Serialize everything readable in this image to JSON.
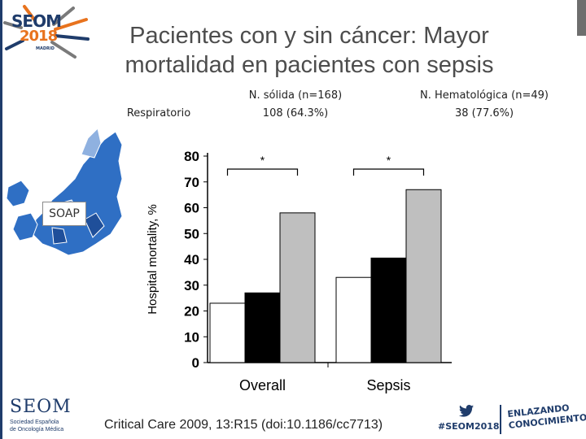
{
  "slide": {
    "title": "Pacientes con y sin cáncer: Mayor mortalidad en pacientes con sepsis",
    "logo_top": {
      "line1": "SEOM",
      "line2": "2018",
      "sub": "MADRID"
    },
    "respiratorio": "Respiratorio",
    "solid": {
      "label": "N. sólida (n=168)",
      "value": "108 (64.3%)"
    },
    "hemato": {
      "label": "N. Hematológica (n=49)",
      "value": "38 (77.6%)"
    },
    "soap": "SOAP",
    "citation": "Critical Care 2009, 13:R15 (doi:10.1186/cc7713)",
    "logo_bottom": {
      "name": "SEOM",
      "sub1": "Sociedad Española",
      "sub2": "de Oncología Médica"
    },
    "hashtag": "#SEOM2018",
    "enlazando": {
      "line1": "ENLAZANDO",
      "line2": "CONOCIMIENTO"
    },
    "colors": {
      "brand_navy": "#1f3c6b",
      "brand_orange": "#e8731e",
      "map_blue": "#2f6fc4",
      "bar_none": "#ffffff",
      "bar_solid": "#000000",
      "bar_hemato": "#bfbfbf"
    }
  },
  "chart_data": {
    "type": "bar",
    "categories": [
      "Overall",
      "Sepsis"
    ],
    "series": [
      {
        "values": [
          23,
          33
        ]
      },
      {
        "values": [
          27,
          40.5
        ]
      },
      {
        "values": [
          58,
          67
        ]
      }
    ],
    "ylabel": "Hospital mortality, %",
    "ylim": [
      0,
      80
    ],
    "yticks": [
      0,
      10,
      20,
      30,
      40,
      50,
      60,
      70,
      80
    ],
    "annotations": [
      "*",
      "*"
    ],
    "grid": false
  }
}
